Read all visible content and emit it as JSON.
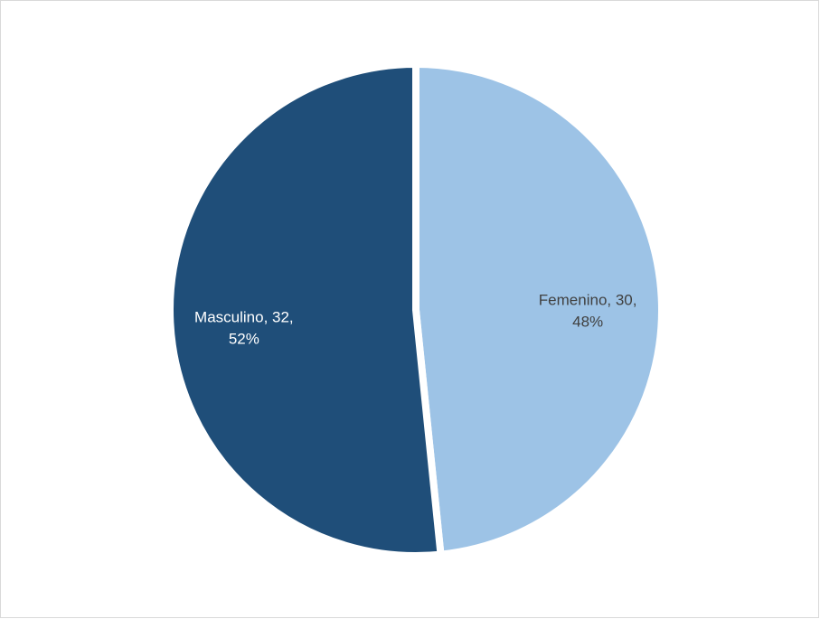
{
  "chart_data": {
    "type": "pie",
    "categories": [
      "Femenino",
      "Masculino"
    ],
    "values": [
      30,
      32
    ],
    "value_labels": [
      "Femenino, 30, 48%",
      "Masculino, 32, 52%"
    ],
    "colors": [
      "#9dc3e6",
      "#1f4e79"
    ]
  }
}
